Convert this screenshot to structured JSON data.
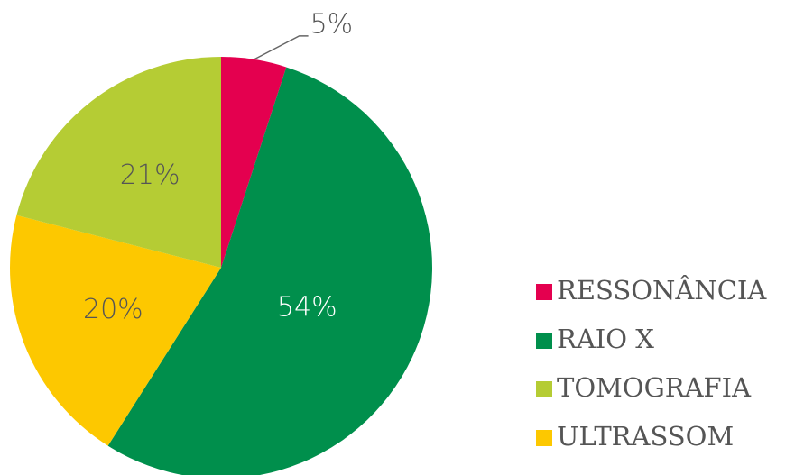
{
  "chart_data": {
    "type": "pie",
    "categories": [
      "RESSONÂNCIA",
      "RAIO X",
      "TOMOGRAFIA",
      "ULTRASSOM"
    ],
    "values": [
      5,
      54,
      21,
      20
    ],
    "value_labels": [
      "5%",
      "54%",
      "21%",
      "20%"
    ],
    "colors": [
      "#e4004f",
      "#008f4c",
      "#b5cc34",
      "#fdc800"
    ],
    "legend": "right"
  }
}
